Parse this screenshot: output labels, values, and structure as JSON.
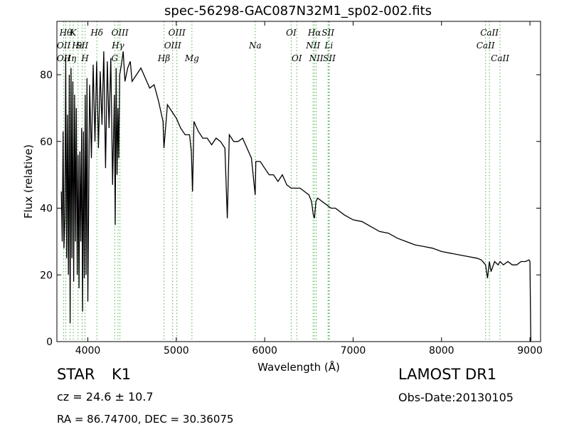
{
  "chart_data": {
    "type": "line",
    "title": "spec-56298-GAC087N32M1_sp02-002.fits",
    "xlabel": "Wavelength (Å)",
    "ylabel": "Flux (relative)",
    "xlim": [
      3650,
      9120
    ],
    "ylim": [
      0,
      96
    ],
    "xticks": [
      4000,
      5000,
      6000,
      7000,
      8000,
      9000
    ],
    "yticks": [
      0,
      20,
      40,
      60,
      80
    ],
    "grid": false,
    "line_color": "#000000",
    "marker_color": "#4daf4a",
    "series": [
      {
        "x": [
          3700,
          3710,
          3720,
          3730,
          3740,
          3750,
          3760,
          3770,
          3780,
          3790,
          3800,
          3810,
          3820,
          3830,
          3840,
          3850,
          3860,
          3870,
          3880,
          3890,
          3900,
          3910,
          3920,
          3930,
          3940,
          3950,
          3960,
          3970,
          3980,
          3990,
          4000,
          4020,
          4040,
          4060,
          4080,
          4100,
          4120,
          4140,
          4160,
          4180,
          4200,
          4220,
          4240,
          4260,
          4280,
          4300,
          4310,
          4320,
          4330,
          4340,
          4350,
          4360,
          4380,
          4400,
          4420,
          4450,
          4480,
          4500,
          4550,
          4600,
          4650,
          4700,
          4750,
          4800,
          4850,
          4861,
          4900,
          4950,
          5000,
          5050,
          5100,
          5150,
          5170,
          5184,
          5200,
          5250,
          5300,
          5350,
          5400,
          5450,
          5500,
          5550,
          5577,
          5600,
          5650,
          5700,
          5750,
          5800,
          5850,
          5893,
          5900,
          5950,
          6000,
          6050,
          6100,
          6150,
          6200,
          6250,
          6300,
          6350,
          6400,
          6450,
          6500,
          6530,
          6550,
          6563,
          6580,
          6600,
          6650,
          6700,
          6750,
          6800,
          6900,
          7000,
          7100,
          7200,
          7300,
          7400,
          7500,
          7600,
          7700,
          7800,
          7900,
          8000,
          8100,
          8200,
          8300,
          8400,
          8450,
          8498,
          8520,
          8542,
          8560,
          8600,
          8640,
          8662,
          8700,
          8750,
          8800,
          8850,
          8900,
          8950,
          8990,
          9000,
          9005,
          9010
        ],
        "y": [
          45,
          30,
          63,
          28,
          37,
          85,
          25,
          68,
          20,
          80,
          5.5,
          82,
          25,
          78,
          18,
          74,
          30,
          70,
          20,
          56,
          16,
          57,
          30,
          64,
          9,
          63,
          19,
          74,
          20,
          79,
          12,
          77,
          55,
          83,
          60,
          84,
          58,
          81,
          65,
          87,
          52,
          84,
          64,
          85,
          47,
          74,
          35,
          82,
          50,
          70,
          55,
          80,
          83,
          87,
          78,
          82,
          84,
          78,
          80,
          82,
          79,
          76,
          77,
          72,
          66,
          58,
          71,
          69,
          67,
          64,
          62,
          62,
          57,
          45,
          66,
          63,
          61,
          61,
          59,
          61,
          60,
          58,
          37,
          62,
          60,
          60,
          61,
          58,
          55,
          44,
          54,
          54,
          52,
          50,
          50,
          48,
          50,
          47,
          46,
          46,
          46,
          45,
          44,
          42,
          38,
          37,
          42,
          43,
          42,
          41,
          40,
          40,
          38,
          36.5,
          36,
          34.5,
          33,
          32.5,
          31,
          30,
          29,
          28.5,
          28,
          27,
          26.5,
          26,
          25.5,
          25,
          24.5,
          23,
          19,
          24,
          21,
          24,
          23,
          24,
          23,
          24,
          23,
          23,
          24,
          24,
          24.5,
          24,
          12,
          0
        ]
      }
    ],
    "line_markers": [
      {
        "x": 3727,
        "label": "OII",
        "label2": "OII",
        "row": 2,
        "row2": 3
      },
      {
        "x": 3750,
        "label": "Hθ",
        "row": 1
      },
      {
        "x": 3798,
        "label": "Hη",
        "row": 3
      },
      {
        "x": 3835,
        "label": "K",
        "row": 1
      },
      {
        "x": 3889,
        "label": "Hε",
        "row": 2
      },
      {
        "x": 3935,
        "label": "SII",
        "row": 2
      },
      {
        "x": 3968,
        "label": "H",
        "row": 3
      },
      {
        "x": 4102,
        "label": "Hδ",
        "row": 1
      },
      {
        "x": 4304,
        "label": "G",
        "row": 3
      },
      {
        "x": 4341,
        "label": "Hγ",
        "row": 2
      },
      {
        "x": 4363,
        "label": "OIII",
        "row": 1
      },
      {
        "x": 4861,
        "label": "Hβ",
        "row": 3
      },
      {
        "x": 4959,
        "label": "OIII",
        "row": 2
      },
      {
        "x": 5007,
        "label": "OIII",
        "row": 1
      },
      {
        "x": 5177,
        "label": "Mg",
        "row": 3
      },
      {
        "x": 5893,
        "label": "Na",
        "row": 2
      },
      {
        "x": 6300,
        "label": "OI",
        "row": 1
      },
      {
        "x": 6363,
        "label": "OI",
        "row": 3
      },
      {
        "x": 6548,
        "label": "NII",
        "row": 2
      },
      {
        "x": 6563,
        "label": "Hα",
        "row": 1
      },
      {
        "x": 6583,
        "label": "NII",
        "row": 3
      },
      {
        "x": 6716,
        "label": "SII",
        "row": 1
      },
      {
        "x": 6725,
        "label": "Li",
        "row": 2
      },
      {
        "x": 6731,
        "label": "SII",
        "row": 3
      },
      {
        "x": 8498,
        "label": "CaII",
        "row": 2
      },
      {
        "x": 8542,
        "label": "CaII",
        "row": 1
      },
      {
        "x": 8662,
        "label": "CaII",
        "row": 3
      }
    ]
  },
  "info": {
    "object_class": "STAR",
    "subclass": "K1",
    "survey": "LAMOST DR1",
    "cz": "cz = 24.6  ± 10.7",
    "obs_date": "Obs-Date:20130105",
    "coords": "RA = 86.74700, DEC = 30.36075"
  }
}
